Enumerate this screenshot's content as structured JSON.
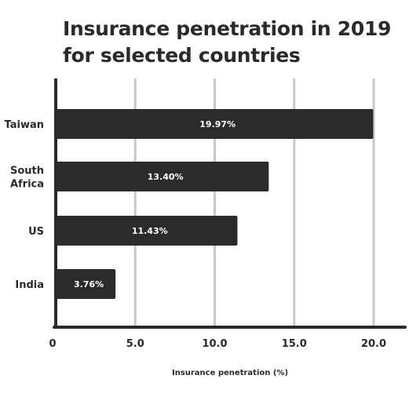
{
  "chart_data": {
    "type": "bar",
    "orientation": "horizontal",
    "title_lines": [
      "Insurance penetration in 2019",
      "for selected countries"
    ],
    "categories": [
      {
        "id": "taiwan",
        "lines": [
          "Taiwan"
        ]
      },
      {
        "id": "south-africa",
        "lines": [
          "South",
          "Africa"
        ]
      },
      {
        "id": "us",
        "lines": [
          "US"
        ]
      },
      {
        "id": "india",
        "lines": [
          "India"
        ]
      }
    ],
    "values": [
      19.97,
      13.4,
      11.43,
      3.76
    ],
    "data_labels": [
      "19.97%",
      "13.40%",
      "11.43%",
      "3.76%"
    ],
    "x_ticks": [
      0,
      5,
      10,
      15,
      20
    ],
    "x_tick_labels": [
      "0",
      "5.0",
      "10.0",
      "15.0",
      "20.0"
    ],
    "xlabel": "Insurance penetration (%)",
    "xlim": [
      0,
      21.7
    ],
    "grid": true,
    "colors": {
      "bar": "#2b2b2b",
      "grid": "#c8c8c8",
      "axis": "#2b2b2b",
      "text": "#2a2a2a",
      "label": "#ffffff"
    }
  }
}
